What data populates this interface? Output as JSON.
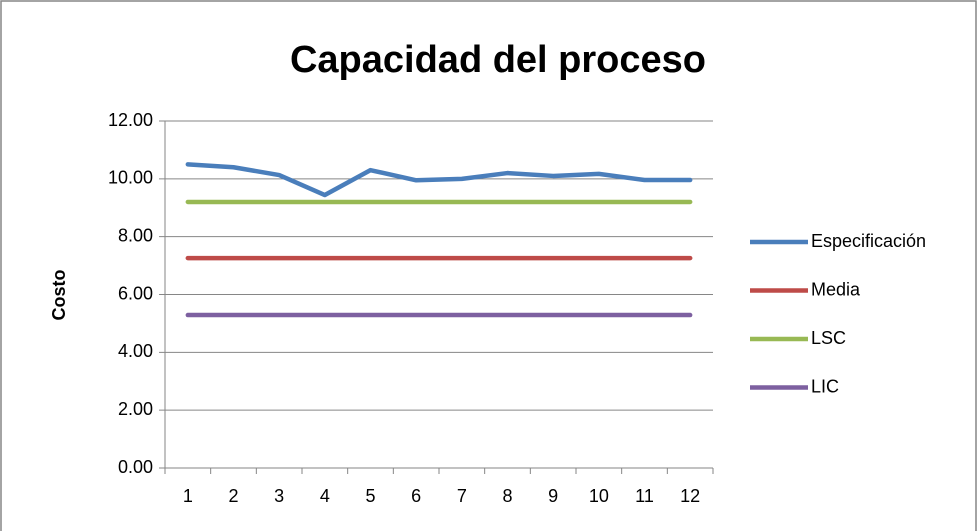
{
  "chart_data": {
    "type": "line",
    "title": "Capacidad del proceso",
    "y_label": "Costo",
    "categories": [
      "1",
      "2",
      "3",
      "4",
      "5",
      "6",
      "7",
      "8",
      "9",
      "10",
      "11",
      "12"
    ],
    "series": [
      {
        "name": "Especificación",
        "color": "#4a7ebb",
        "values": [
          10.5,
          10.4,
          10.13,
          9.44,
          10.3,
          9.95,
          10.0,
          10.2,
          10.1,
          10.17,
          9.96,
          9.96
        ]
      },
      {
        "name": "Media",
        "color": "#be4b48",
        "values": [
          7.26,
          7.26,
          7.26,
          7.26,
          7.26,
          7.26,
          7.26,
          7.26,
          7.26,
          7.26,
          7.26,
          7.26
        ]
      },
      {
        "name": "LSC",
        "color": "#98b954",
        "values": [
          9.2,
          9.2,
          9.2,
          9.2,
          9.2,
          9.2,
          9.2,
          9.2,
          9.2,
          9.2,
          9.2,
          9.2
        ]
      },
      {
        "name": "LIC",
        "color": "#7d60a0",
        "values": [
          5.29,
          5.29,
          5.29,
          5.29,
          5.29,
          5.29,
          5.29,
          5.29,
          5.29,
          5.29,
          5.29,
          5.29
        ]
      }
    ],
    "ylim": [
      0,
      12
    ],
    "yticks": [
      {
        "value": 0,
        "label": "0.00"
      },
      {
        "value": 2,
        "label": "2.00"
      },
      {
        "value": 4,
        "label": "4.00"
      },
      {
        "value": 6,
        "label": "6.00"
      },
      {
        "value": 8,
        "label": "8.00"
      },
      {
        "value": 10,
        "label": "10.00"
      },
      {
        "value": 12,
        "label": "12.00"
      }
    ],
    "grid": true,
    "legend": "right"
  }
}
